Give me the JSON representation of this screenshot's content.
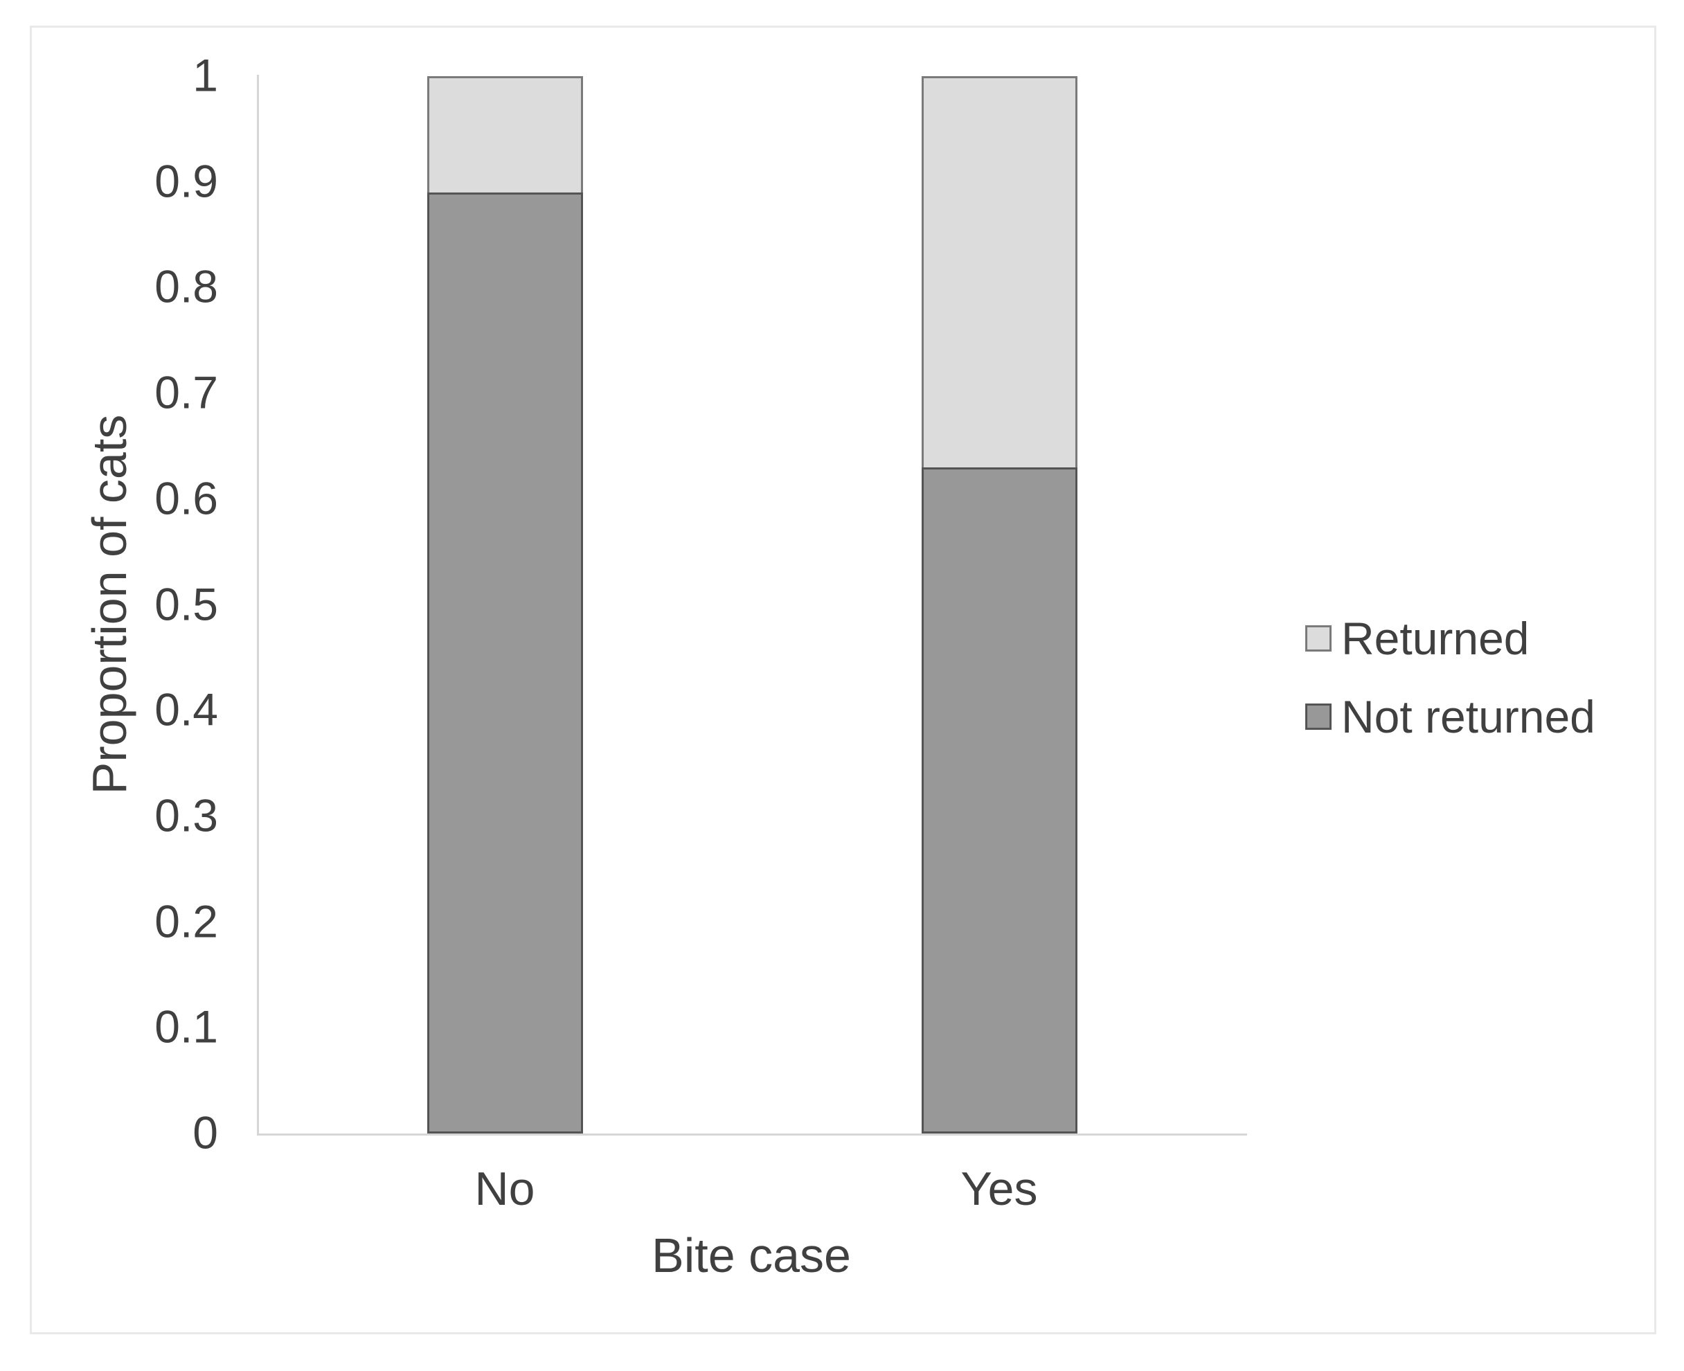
{
  "chart_data": {
    "type": "bar",
    "subtype": "stacked",
    "title": "",
    "xlabel": "Bite case",
    "ylabel": "Proportion of cats",
    "categories": [
      "No",
      "Yes"
    ],
    "series": [
      {
        "name": "Returned",
        "values": [
          0.11,
          0.37
        ],
        "color": "#dcdcdc",
        "border": "#7a7a7a"
      },
      {
        "name": "Not returned",
        "values": [
          0.89,
          0.63
        ],
        "color": "#989898",
        "border": "#545454"
      }
    ],
    "ylim": [
      0,
      1
    ],
    "ytick_step": 0.1,
    "yticks": [
      "1",
      "0.9",
      "0.8",
      "0.7",
      "0.6",
      "0.5",
      "0.4",
      "0.3",
      "0.2",
      "0.1",
      "0"
    ],
    "legend_position": "right",
    "grid": false,
    "colors": {
      "text": "#404040",
      "axis_line": "#d6d6d6",
      "frame_border": "#e9e9e9",
      "background": "#ffffff"
    }
  }
}
